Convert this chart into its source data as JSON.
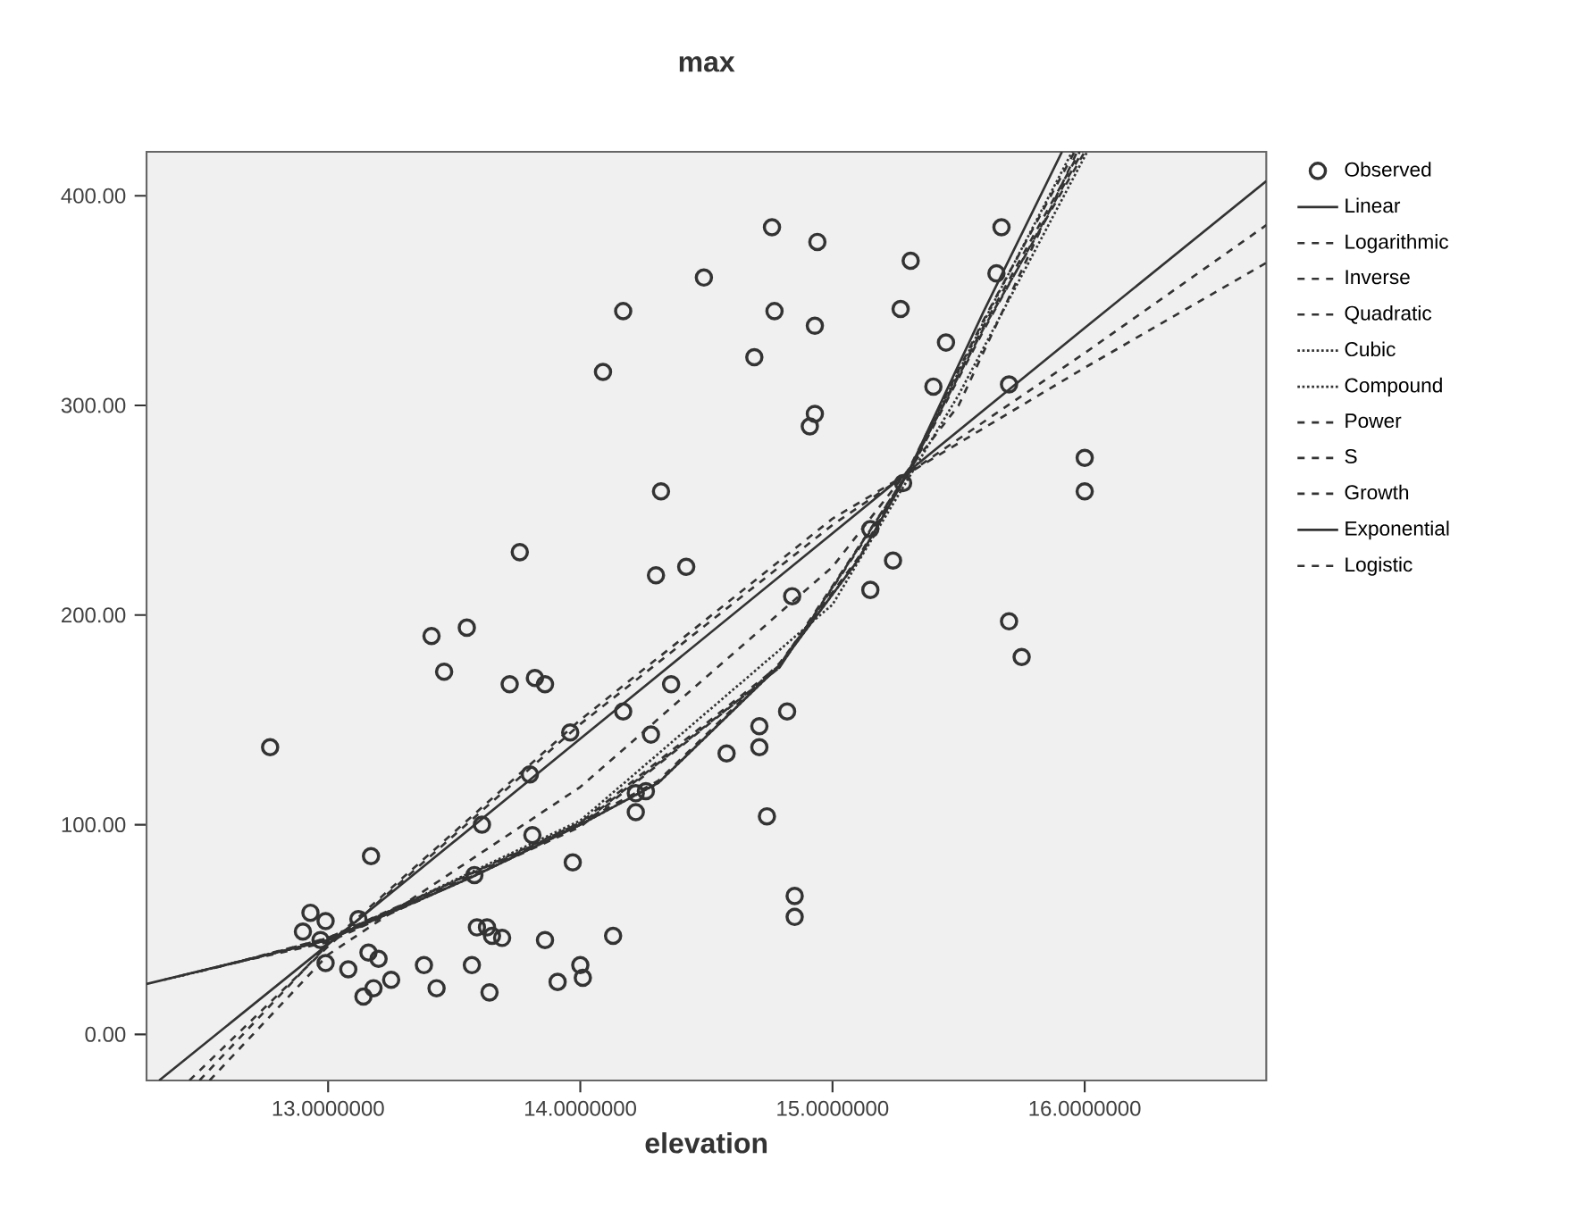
{
  "chart_data": {
    "type": "scatter",
    "title": "max",
    "xlabel": "elevation",
    "xlim": [
      12.28,
      16.72
    ],
    "ylim": [
      -22,
      421
    ],
    "xticks": [
      {
        "value": 13,
        "label": "13.0000000"
      },
      {
        "value": 14,
        "label": "14.0000000"
      },
      {
        "value": 15,
        "label": "15.0000000"
      },
      {
        "value": 16,
        "label": "16.0000000"
      }
    ],
    "yticks": [
      {
        "value": 0,
        "label": "0.00"
      },
      {
        "value": 100,
        "label": "100.00"
      },
      {
        "value": 200,
        "label": "200.00"
      },
      {
        "value": 300,
        "label": "300.00"
      },
      {
        "value": 400,
        "label": "400.00"
      }
    ],
    "legend": "right",
    "series": [
      {
        "name": "Observed",
        "marker": "circle",
        "color": "#333333",
        "x": [
          12.77,
          12.9,
          12.93,
          12.97,
          12.99,
          12.99,
          13.08,
          13.12,
          13.14,
          13.16,
          13.17,
          13.18,
          13.2,
          13.25,
          13.38,
          13.41,
          13.43,
          13.46,
          13.55,
          13.57,
          13.58,
          13.59,
          13.61,
          13.63,
          13.64,
          13.65,
          13.69,
          13.72,
          13.76,
          13.8,
          13.81,
          13.82,
          13.86,
          13.86,
          13.91,
          13.96,
          13.97,
          14.0,
          14.01,
          14.09,
          14.13,
          14.17,
          14.17,
          14.22,
          14.22,
          14.26,
          14.28,
          14.3,
          14.32,
          14.36,
          14.42,
          14.49,
          14.58,
          14.69,
          14.71,
          14.71,
          14.74,
          14.76,
          14.77,
          14.82,
          14.84,
          14.85,
          14.85,
          14.91,
          14.93,
          14.93,
          14.94,
          15.15,
          15.15,
          15.24,
          15.27,
          15.28,
          15.31,
          15.4,
          15.45,
          15.65,
          15.67,
          15.7,
          15.7,
          15.75,
          16.0,
          16.0
        ],
        "values": [
          137,
          49,
          58,
          45,
          54,
          34,
          31,
          55,
          18,
          39,
          85,
          22,
          36,
          26,
          33,
          190,
          22,
          173,
          194,
          33,
          76,
          51,
          100,
          51,
          20,
          47,
          46,
          167,
          230,
          124,
          95,
          170,
          167,
          45,
          25,
          144,
          82,
          33,
          27,
          316,
          47,
          345,
          154,
          115,
          106,
          116,
          143,
          219,
          259,
          167,
          223,
          361,
          134,
          323,
          147,
          137,
          104,
          385,
          345,
          154,
          209,
          66,
          56,
          290,
          296,
          338,
          378,
          241,
          212,
          226,
          346,
          263,
          369,
          309,
          330,
          363,
          385,
          310,
          197,
          180,
          275,
          259
        ]
      },
      {
        "name": "Linear",
        "type": "line",
        "line_style": "solid",
        "color": "#333333",
        "x": [
          12.33,
          13,
          14,
          15,
          16,
          16.72
        ],
        "values": [
          -22,
          43,
          141,
          239,
          337,
          407
        ]
      },
      {
        "name": "Logarithmic",
        "type": "line",
        "line_style": "dashed",
        "color": "#333333",
        "x": [
          12.45,
          13,
          14,
          15,
          16,
          16.72
        ],
        "values": [
          -22,
          42,
          148,
          243,
          325,
          386
        ]
      },
      {
        "name": "Inverse",
        "type": "line",
        "line_style": "dashed",
        "color": "#333333",
        "x": [
          12.49,
          13,
          14,
          15,
          16,
          16.72
        ],
        "values": [
          -22,
          43,
          150,
          246,
          318,
          368
        ]
      },
      {
        "name": "Quadratic",
        "type": "line",
        "line_style": "dashed",
        "color": "#333333",
        "x": [
          12.53,
          13,
          14,
          15,
          15.5,
          15.97
        ],
        "values": [
          -22,
          38,
          118,
          223,
          300,
          421
        ]
      },
      {
        "name": "Cubic",
        "type": "line",
        "line_style": "dotted",
        "color": "#333333",
        "x": [
          12.35,
          13,
          14,
          15,
          15.5,
          16.01
        ],
        "values": [
          26,
          45,
          102,
          205,
          305,
          421
        ]
      },
      {
        "name": "Compound",
        "type": "line",
        "line_style": "dotted",
        "color": "#333333",
        "x": [
          12.42,
          13,
          13.57,
          14,
          14.31,
          14.79,
          15.1,
          15.3,
          15.6,
          15.95
        ],
        "values": [
          28,
          45,
          75,
          100,
          120,
          176,
          226,
          268,
          340,
          421
        ]
      },
      {
        "name": "Power",
        "type": "line",
        "line_style": "dashed",
        "color": "#333333",
        "x": [
          12.49,
          13,
          14,
          14.79,
          15.3,
          15.6,
          15.98
        ],
        "values": [
          30,
          45,
          101,
          176,
          268,
          338,
          421
        ]
      },
      {
        "name": "S",
        "type": "line",
        "line_style": "dashed",
        "color": "#333333",
        "x": [
          12.56,
          13,
          14,
          14.79,
          15.3,
          15.6,
          15.99
        ],
        "values": [
          32,
          46,
          100,
          175,
          267,
          336,
          421
        ]
      },
      {
        "name": "Growth",
        "type": "line",
        "line_style": "dashed",
        "color": "#333333",
        "x": [
          12.63,
          13,
          13.57,
          14,
          14.31,
          14.79,
          15.1,
          15.3,
          15.6,
          15.96
        ],
        "values": [
          34,
          46,
          76,
          101,
          121,
          177,
          227,
          269,
          341,
          421
        ]
      },
      {
        "name": "Exponential",
        "type": "line",
        "line_style": "solid",
        "color": "#333333",
        "x": [
          12.28,
          13,
          13.57,
          14,
          14.31,
          14.79,
          15.1,
          15.3,
          15.6,
          15.91
        ],
        "values": [
          24,
          45,
          75,
          100,
          120,
          176,
          226,
          268,
          345,
          421
        ]
      },
      {
        "name": "Logistic",
        "type": "line",
        "line_style": "dashed",
        "color": "#333333",
        "x": [
          12.7,
          13,
          14,
          14.79,
          15.3,
          15.6,
          16.0
        ],
        "values": [
          36,
          44,
          99,
          175,
          268,
          337,
          421
        ]
      }
    ]
  }
}
